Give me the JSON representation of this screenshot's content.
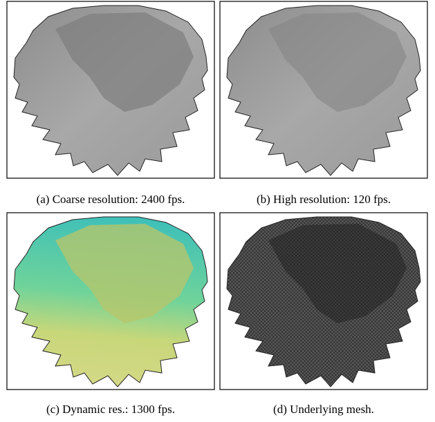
{
  "figure": {
    "panels": [
      {
        "caption": "(a) Coarse resolution: 2400 fps."
      },
      {
        "caption": "(b) High resolution: 120 fps."
      },
      {
        "caption": "(c) Dynamic res.: 1300 fps."
      },
      {
        "caption": "(d) Underlying mesh."
      }
    ]
  }
}
